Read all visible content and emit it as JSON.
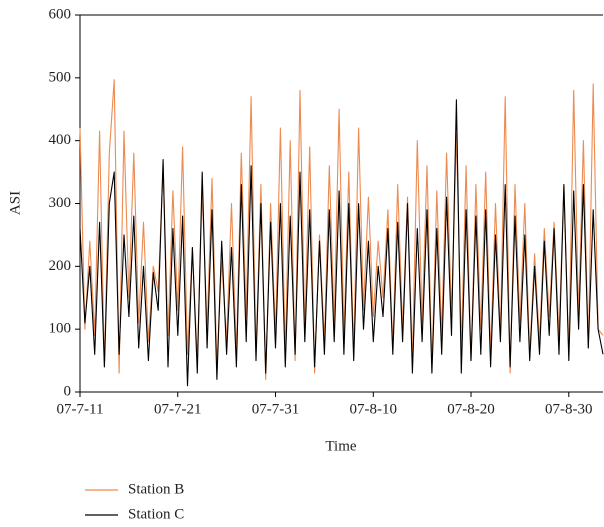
{
  "chart_data": {
    "type": "line",
    "y_label": "ASI",
    "x_label": "Time",
    "categories": [
      "07-7-11",
      null,
      null,
      null,
      null,
      null,
      null,
      null,
      null,
      null,
      null,
      null,
      null,
      null,
      null,
      null,
      null,
      null,
      null,
      null,
      "07-7-21",
      null,
      null,
      null,
      null,
      null,
      null,
      null,
      null,
      null,
      null,
      null,
      null,
      null,
      null,
      null,
      null,
      null,
      null,
      null,
      "07-7-31",
      null,
      null,
      null,
      null,
      null,
      null,
      null,
      null,
      null,
      null,
      null,
      null,
      null,
      null,
      null,
      null,
      null,
      null,
      null,
      "07-8-10",
      null,
      null,
      null,
      null,
      null,
      null,
      null,
      null,
      null,
      null,
      null,
      null,
      null,
      null,
      null,
      null,
      null,
      null,
      null,
      "07-8-20",
      null,
      null,
      null,
      null,
      null,
      null,
      null,
      null,
      null,
      null,
      null,
      null,
      null,
      null,
      null,
      null,
      null,
      null,
      null,
      "07-8-30",
      null,
      null,
      null,
      null,
      null,
      null,
      null
    ],
    "series": [
      {
        "name": "Station B",
        "color": "#ed8a4f",
        "values": [
          420,
          100,
          240,
          90,
          415,
          40,
          380,
          497,
          30,
          415,
          150,
          380,
          110,
          270,
          80,
          200,
          160,
          360,
          90,
          320,
          130,
          390,
          60,
          230,
          50,
          320,
          100,
          340,
          40,
          210,
          80,
          300,
          60,
          380,
          120,
          470,
          60,
          330,
          20,
          300,
          90,
          420,
          60,
          400,
          50,
          480,
          100,
          390,
          30,
          250,
          80,
          360,
          110,
          450,
          90,
          350,
          60,
          420,
          130,
          310,
          120,
          240,
          150,
          290,
          70,
          330,
          100,
          310,
          50,
          400,
          110,
          360,
          40,
          320,
          90,
          380,
          120,
          410,
          70,
          360,
          50,
          330,
          100,
          350,
          60,
          300,
          90,
          470,
          30,
          330,
          110,
          300,
          60,
          220,
          80,
          260,
          120,
          270,
          90,
          330,
          60,
          480,
          120,
          400,
          70,
          490,
          100,
          90
        ]
      },
      {
        "name": "Station C",
        "color": "#000000",
        "values": [
          260,
          110,
          200,
          60,
          270,
          40,
          300,
          350,
          60,
          250,
          120,
          280,
          70,
          200,
          50,
          190,
          130,
          370,
          40,
          260,
          90,
          280,
          10,
          230,
          30,
          350,
          70,
          290,
          20,
          240,
          60,
          230,
          40,
          330,
          80,
          360,
          50,
          300,
          30,
          270,
          70,
          300,
          40,
          280,
          60,
          350,
          80,
          290,
          40,
          240,
          60,
          290,
          80,
          320,
          60,
          300,
          50,
          300,
          100,
          240,
          80,
          200,
          120,
          260,
          60,
          270,
          80,
          300,
          30,
          260,
          80,
          290,
          30,
          260,
          60,
          310,
          90,
          465,
          30,
          290,
          50,
          280,
          60,
          290,
          40,
          250,
          80,
          330,
          40,
          280,
          80,
          250,
          50,
          200,
          60,
          240,
          90,
          260,
          60,
          330,
          50,
          320,
          100,
          330,
          70,
          290,
          100,
          60
        ]
      }
    ],
    "ylim": [
      0,
      600
    ],
    "yticks": [
      0,
      100,
      200,
      300,
      400,
      500,
      600
    ]
  }
}
